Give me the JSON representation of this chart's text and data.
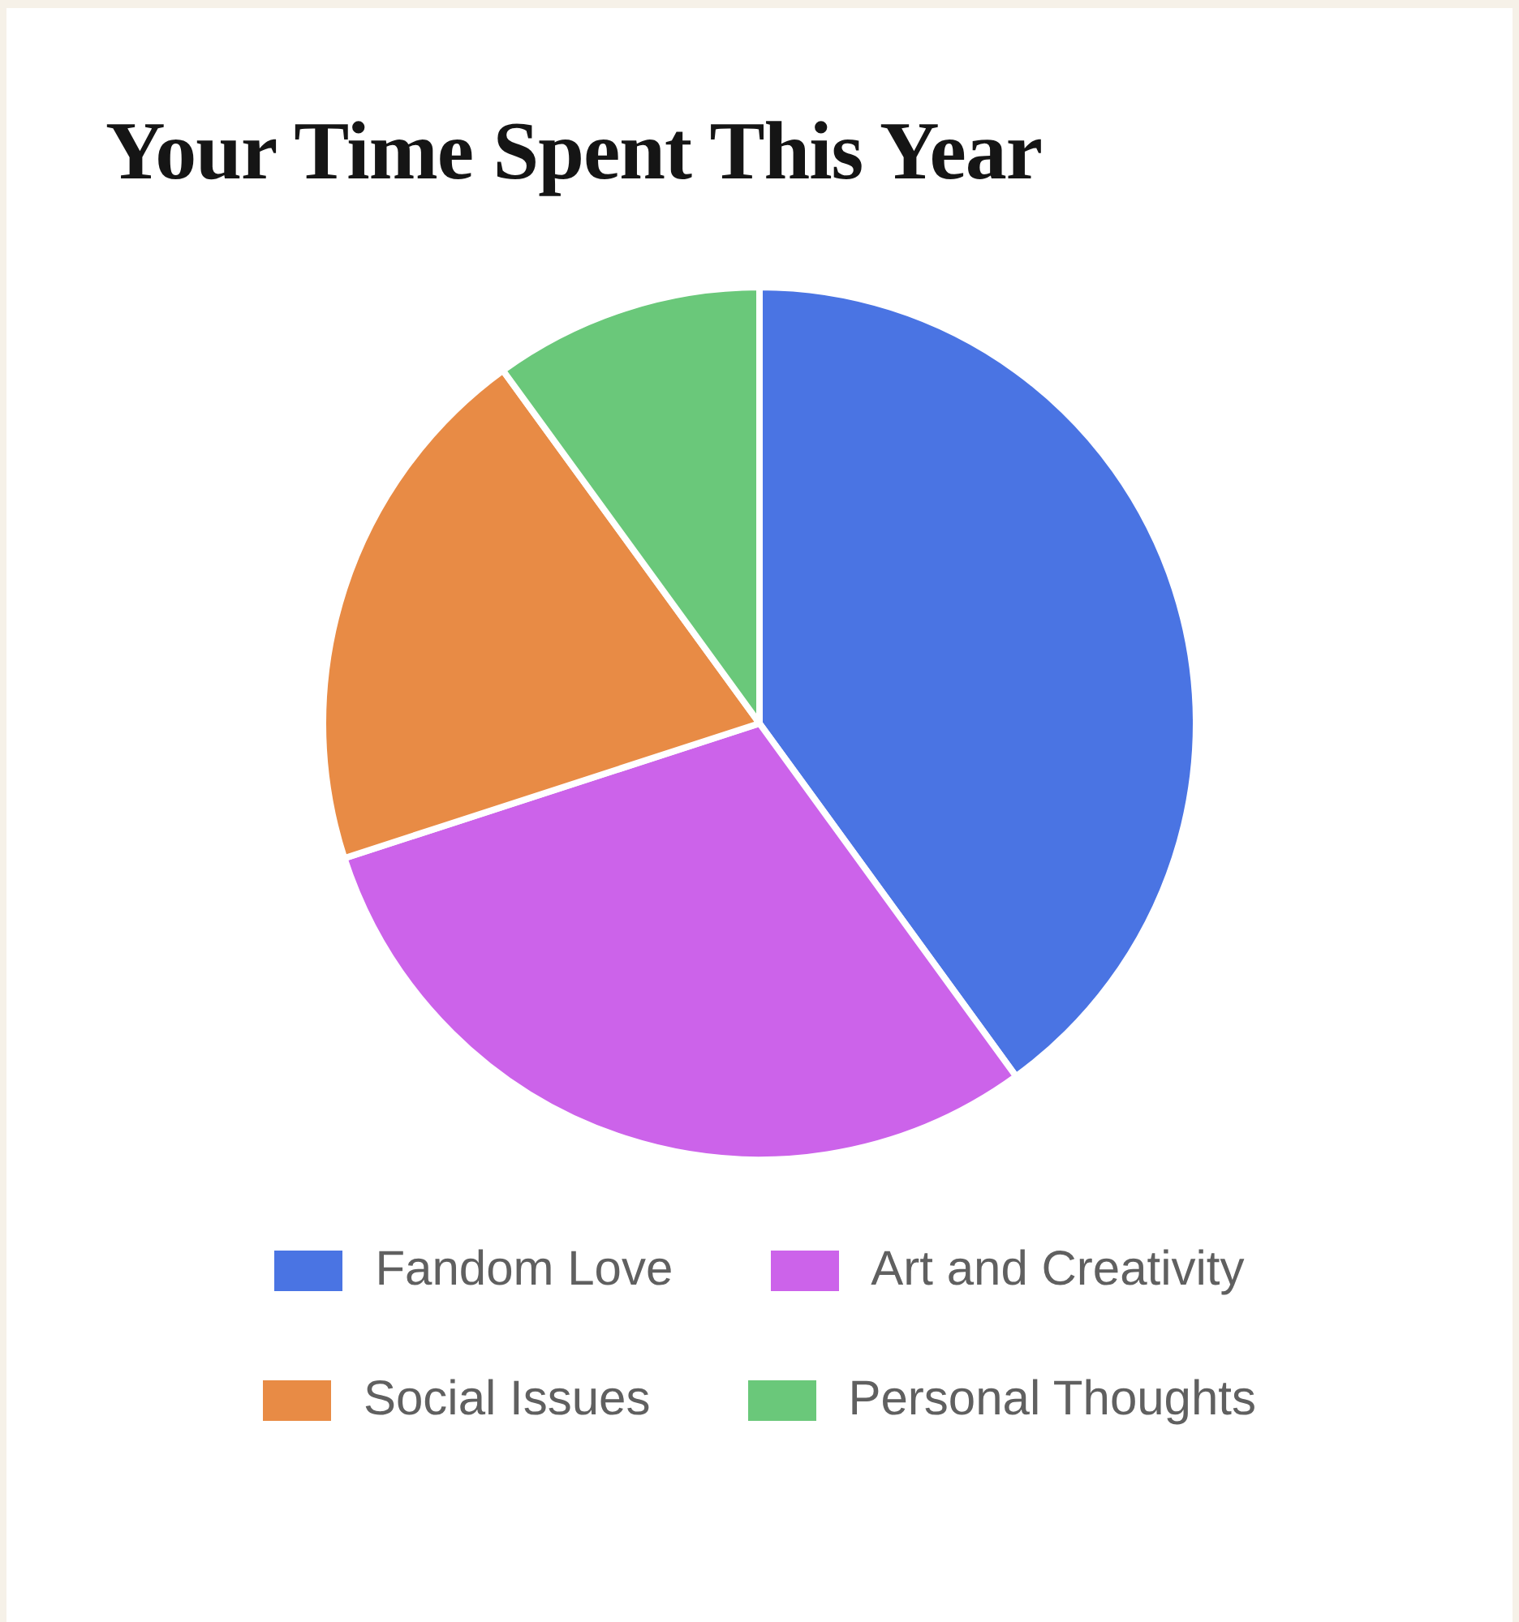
{
  "chart_data": {
    "type": "pie",
    "title": "Your Time Spent This Year",
    "categories": [
      "Fandom Love",
      "Art and Creativity",
      "Social Issues",
      "Personal Thoughts"
    ],
    "values": [
      40,
      30,
      20,
      10
    ],
    "colors": [
      "#4a74e3",
      "#cc63ea",
      "#e88b45",
      "#6ac87a"
    ],
    "legend": "bottom"
  }
}
